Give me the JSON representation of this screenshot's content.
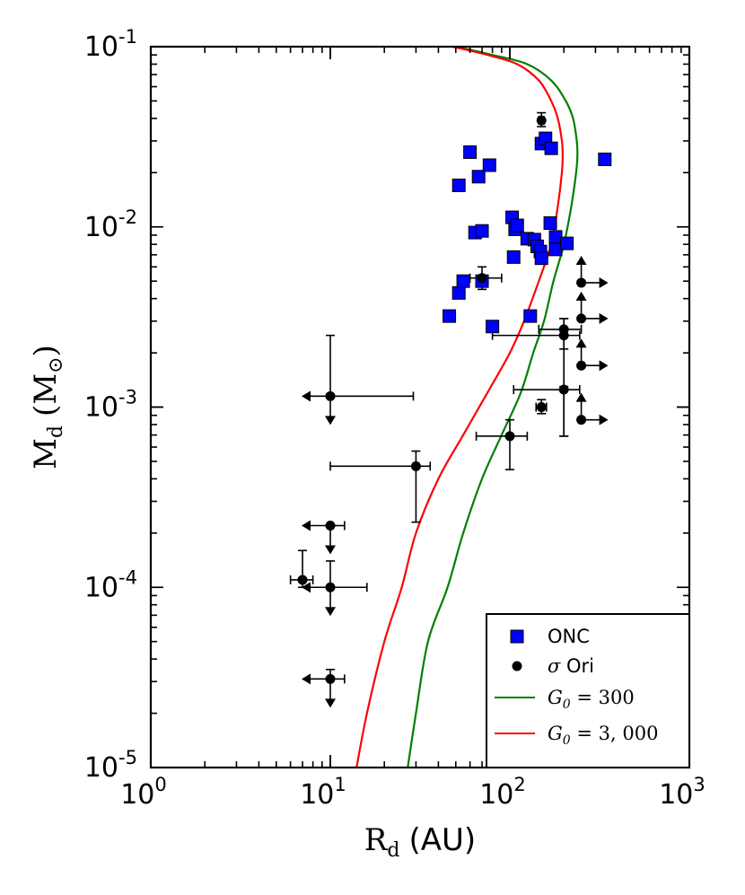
{
  "chart_data": {
    "type": "scatter",
    "xlabel_main": "R",
    "xlabel_sub": "d",
    "xlabel_unit": "(AU)",
    "ylabel_main": "M",
    "ylabel_sub": "d",
    "ylabel_unit_open": "(M",
    "ylabel_unit_sym": "⊙",
    "ylabel_unit_close": ")",
    "x_scale": "log",
    "y_scale": "log",
    "xlim": [
      1,
      1000
    ],
    "ylim": [
      1e-05,
      0.1
    ],
    "x_ticks": [
      {
        "base": "10",
        "exp": "0",
        "value": 1
      },
      {
        "base": "10",
        "exp": "1",
        "value": 10
      },
      {
        "base": "10",
        "exp": "2",
        "value": 100
      },
      {
        "base": "10",
        "exp": "3",
        "value": 1000
      }
    ],
    "y_ticks": [
      {
        "base": "10",
        "exp": "-5",
        "value": 1e-05
      },
      {
        "base": "10",
        "exp": "-4",
        "value": 0.0001
      },
      {
        "base": "10",
        "exp": "-3",
        "value": 0.001
      },
      {
        "base": "10",
        "exp": "-2",
        "value": 0.01
      },
      {
        "base": "10",
        "exp": "-1",
        "value": 0.1
      }
    ],
    "legend": {
      "position": "lower-right",
      "entries": [
        {
          "label": "ONC",
          "kind": "square",
          "color": "#0000ff"
        },
        {
          "label_sym": "σ",
          "label_rest": " Ori",
          "kind": "circle",
          "color": "#000000"
        },
        {
          "label_math": "G",
          "label_sub": "0",
          "label_rest": " = 300",
          "kind": "line",
          "color": "#008000"
        },
        {
          "label_math": "G",
          "label_sub": "0",
          "label_rest": " = 3, 000",
          "kind": "line",
          "color": "#ff0000"
        }
      ]
    },
    "series": [
      {
        "name": "ONC",
        "color": "#0000ff",
        "points": [
          [
            46,
            0.0032
          ],
          [
            52,
            0.0043
          ],
          [
            52,
            0.017
          ],
          [
            55,
            0.005
          ],
          [
            60,
            0.026
          ],
          [
            64,
            0.0093
          ],
          [
            67,
            0.019
          ],
          [
            70,
            0.0095
          ],
          [
            70,
            0.005
          ],
          [
            77,
            0.022
          ],
          [
            80,
            0.0028
          ],
          [
            103,
            0.0113
          ],
          [
            105,
            0.0068
          ],
          [
            107,
            0.0097
          ],
          [
            110,
            0.0102
          ],
          [
            125,
            0.0086
          ],
          [
            130,
            0.0032
          ],
          [
            137,
            0.0085
          ],
          [
            142,
            0.0078
          ],
          [
            148,
            0.0073
          ],
          [
            150,
            0.0067
          ],
          [
            150,
            0.029
          ],
          [
            158,
            0.031
          ],
          [
            168,
            0.0105
          ],
          [
            170,
            0.0273
          ],
          [
            180,
            0.0088
          ],
          [
            180,
            0.0075
          ],
          [
            208,
            0.0081
          ],
          [
            338,
            0.0237
          ]
        ]
      },
      {
        "name": "sigma Ori",
        "color": "#000000",
        "points": [
          {
            "x": 10,
            "y": 0.00115,
            "xerr": [
              10,
              29
            ],
            "yerr": [
              0.00115,
              0.0025
            ],
            "xl": true,
            "yu": true
          },
          {
            "x": 10,
            "y": 0.00022,
            "xerr": [
              10,
              12
            ],
            "xl": true,
            "yu": true
          },
          {
            "x": 7,
            "y": 0.00011,
            "xerr": [
              6,
              8
            ],
            "yerr": [
              0.0001,
              0.00016
            ]
          },
          {
            "x": 10,
            "y": 0.0001,
            "xerr": [
              10,
              16
            ],
            "yerr": [
              0.0001,
              0.00014
            ],
            "xl": true,
            "yu": true
          },
          {
            "x": 10,
            "y": 3.1e-05,
            "xerr": [
              10,
              12
            ],
            "yerr": [
              3.1e-05,
              3.5e-05
            ],
            "xl": true,
            "yu": true
          },
          {
            "x": 30,
            "y": 0.00047,
            "xerr": [
              10,
              36
            ],
            "yerr": [
              0.00023,
              0.00057
            ]
          },
          {
            "x": 70,
            "y": 0.0052,
            "xerr": [
              60,
              90
            ],
            "yerr": [
              0.0045,
              0.006
            ]
          },
          {
            "x": 100,
            "y": 0.00069,
            "xerr": [
              65,
              125
            ],
            "yerr": [
              0.00045,
              0.00085
            ]
          },
          {
            "x": 150,
            "y": 0.039,
            "xerr": [
              145,
              155
            ],
            "yerr": [
              0.036,
              0.043
            ]
          },
          {
            "x": 150,
            "y": 0.001,
            "xerr": [
              140,
              160
            ],
            "yerr": [
              0.00092,
              0.0011
            ]
          },
          {
            "x": 200,
            "y": 0.00125,
            "xerr": [
              105,
              245
            ],
            "yerr": [
              0.00069,
              0.0013
            ]
          },
          {
            "x": 200,
            "y": 0.0025,
            "xerr": [
              80,
              245
            ],
            "yerr": [
              0.00069,
              0.0031
            ]
          },
          {
            "x": 200,
            "y": 0.0027,
            "xerr": [
              145,
              250
            ],
            "yerr": [
              0.0021,
              0.0031
            ]
          },
          {
            "x": 250,
            "y": 0.0049,
            "xr": true,
            "yl": true
          },
          {
            "x": 250,
            "y": 0.0031,
            "xr": true,
            "yl": true
          },
          {
            "x": 250,
            "y": 0.0017,
            "xr": true,
            "yl": true
          },
          {
            "x": 250,
            "y": 0.00085,
            "xr": true,
            "yl": true
          }
        ]
      },
      {
        "name": "G0 = 300",
        "color": "#008000",
        "curve": [
          [
            27,
            1e-05
          ],
          [
            30,
            2e-05
          ],
          [
            35,
            5e-05
          ],
          [
            45,
            0.0001
          ],
          [
            55,
            0.0002
          ],
          [
            70,
            0.0004
          ],
          [
            90,
            0.0007
          ],
          [
            115,
            0.0012
          ],
          [
            135,
            0.002
          ],
          [
            155,
            0.003
          ],
          [
            175,
            0.005
          ],
          [
            200,
            0.008
          ],
          [
            220,
            0.013
          ],
          [
            234,
            0.02
          ],
          [
            238,
            0.025
          ],
          [
            236,
            0.03
          ],
          [
            225,
            0.04
          ],
          [
            205,
            0.05
          ],
          [
            170,
            0.065
          ],
          [
            125,
            0.08
          ],
          [
            80,
            0.09
          ],
          [
            50,
            0.1
          ]
        ]
      },
      {
        "name": "G0 = 3,000",
        "color": "#ff0000",
        "curve": [
          [
            14,
            1e-05
          ],
          [
            16,
            2e-05
          ],
          [
            20,
            5e-05
          ],
          [
            25,
            0.0001
          ],
          [
            30,
            0.0002
          ],
          [
            40,
            0.0004
          ],
          [
            55,
            0.0007
          ],
          [
            75,
            0.0012
          ],
          [
            100,
            0.002
          ],
          [
            120,
            0.003
          ],
          [
            145,
            0.005
          ],
          [
            170,
            0.008
          ],
          [
            185,
            0.013
          ],
          [
            195,
            0.02
          ],
          [
            197,
            0.025
          ],
          [
            195,
            0.03
          ],
          [
            185,
            0.04
          ],
          [
            170,
            0.05
          ],
          [
            145,
            0.065
          ],
          [
            110,
            0.08
          ],
          [
            75,
            0.09
          ],
          [
            48,
            0.1
          ]
        ]
      }
    ]
  }
}
